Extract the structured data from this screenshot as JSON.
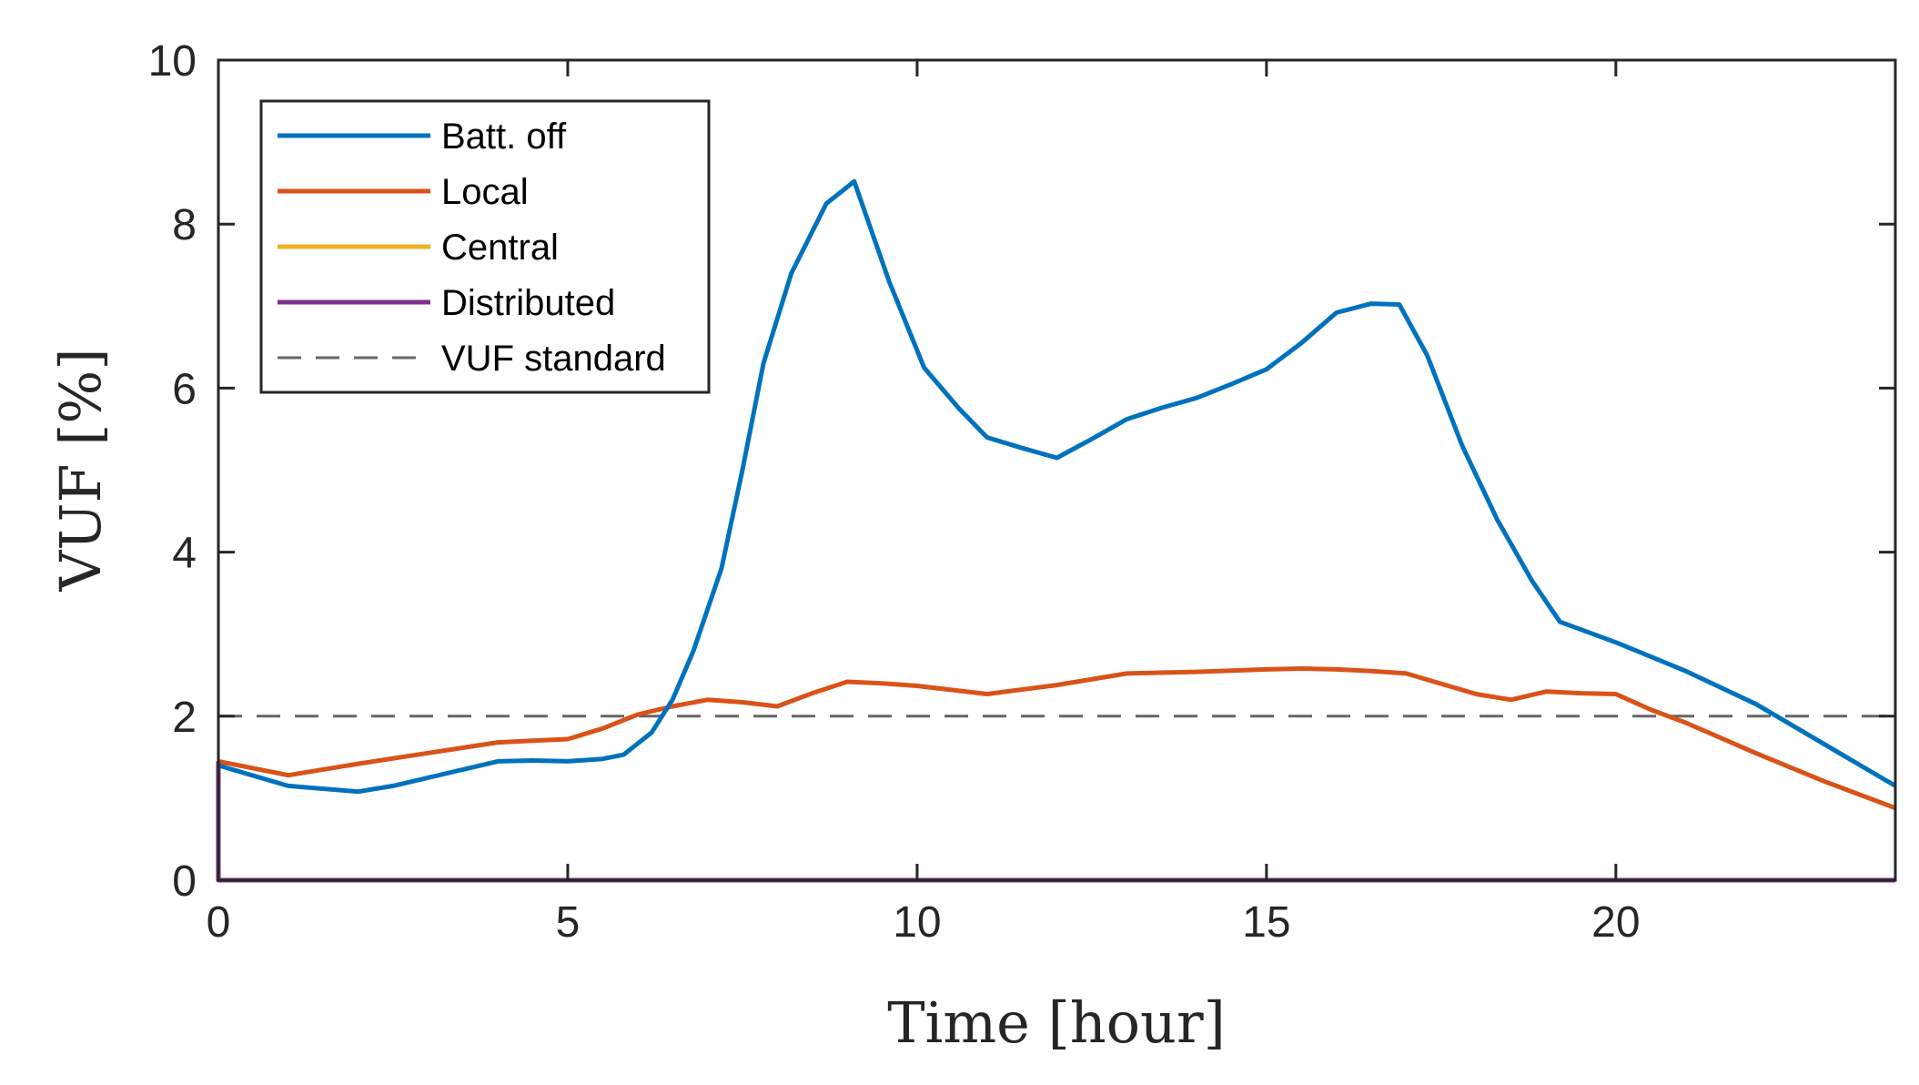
{
  "chart_data": {
    "type": "line",
    "title": "",
    "xlabel": "Time [hour]",
    "ylabel": "VUF [%]",
    "xlim": [
      0,
      24
    ],
    "ylim": [
      0,
      10
    ],
    "xticks": [
      0,
      5,
      10,
      15,
      20
    ],
    "yticks": [
      0,
      2,
      4,
      6,
      8,
      10
    ],
    "grid": false,
    "legend_position": "top-left",
    "series": [
      {
        "name": "Batt. off",
        "color": "#0072BD",
        "style": "solid",
        "x": [
          0,
          1,
          2,
          2.5,
          3,
          3.5,
          4,
          4.5,
          5,
          5.5,
          5.8,
          6.2,
          6.5,
          6.8,
          7.2,
          7.5,
          7.8,
          8.2,
          8.7,
          9.1,
          9.6,
          10.1,
          10.6,
          11.0,
          11.5,
          12.0,
          12.5,
          13.0,
          13.5,
          14.0,
          14.5,
          15.0,
          15.5,
          16.0,
          16.5,
          16.9,
          17.3,
          17.8,
          18.3,
          18.8,
          19.2,
          20.0,
          21.0,
          21.5,
          22.0,
          22.3,
          24.0
        ],
        "y": [
          1.4,
          1.15,
          1.08,
          1.15,
          1.25,
          1.35,
          1.45,
          1.46,
          1.45,
          1.48,
          1.53,
          1.8,
          2.2,
          2.8,
          3.8,
          5.0,
          6.3,
          7.4,
          8.25,
          8.52,
          7.3,
          6.25,
          5.75,
          5.4,
          5.27,
          5.15,
          5.38,
          5.62,
          5.76,
          5.88,
          6.05,
          6.23,
          6.55,
          6.92,
          7.03,
          7.02,
          6.4,
          5.3,
          4.4,
          3.65,
          3.15,
          2.9,
          2.55,
          2.35,
          2.15,
          2.0,
          1.15
        ]
      },
      {
        "name": "Local",
        "color": "#D95319",
        "style": "solid",
        "x": [
          0,
          1,
          2,
          3,
          4,
          4.5,
          5,
          5.5,
          6,
          6.5,
          7,
          7.5,
          8,
          8.5,
          9,
          9.5,
          10,
          11,
          12,
          13,
          14,
          15,
          15.5,
          16,
          16.5,
          17,
          18,
          18.5,
          19,
          19.5,
          20,
          20.5,
          21,
          22,
          23,
          24
        ],
        "y": [
          1.45,
          1.28,
          1.42,
          1.55,
          1.68,
          1.7,
          1.72,
          1.85,
          2.02,
          2.12,
          2.2,
          2.17,
          2.12,
          2.28,
          2.42,
          2.4,
          2.37,
          2.27,
          2.38,
          2.52,
          2.54,
          2.57,
          2.58,
          2.57,
          2.55,
          2.52,
          2.27,
          2.2,
          2.3,
          2.28,
          2.27,
          2.08,
          1.92,
          1.55,
          1.2,
          0.88
        ]
      },
      {
        "name": "Central",
        "color": "#EDB120",
        "style": "solid",
        "x": [
          0,
          0,
          24
        ],
        "y": [
          1.45,
          0,
          0
        ]
      },
      {
        "name": "Distributed",
        "color": "#7E2F8E",
        "style": "solid",
        "x": [
          0,
          0,
          24
        ],
        "y": [
          1.45,
          0,
          0
        ]
      },
      {
        "name": "VUF standard",
        "color": "#666666",
        "style": "dashed",
        "x": [
          0,
          24
        ],
        "y": [
          2,
          2
        ]
      }
    ]
  }
}
